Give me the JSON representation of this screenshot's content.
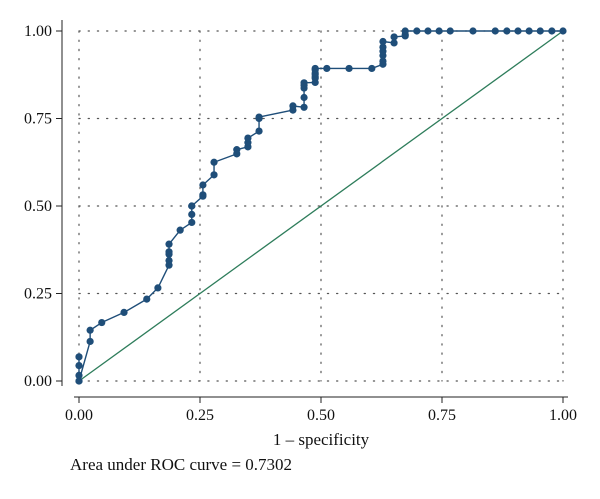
{
  "chart_data": {
    "type": "line",
    "title": "",
    "xlabel": "1 – specificity",
    "ylabel": "",
    "xlim": [
      0,
      1
    ],
    "ylim": [
      0,
      1
    ],
    "x_ticks": [
      "0.00",
      "0.25",
      "0.50",
      "0.75",
      "1.00"
    ],
    "y_ticks": [
      "0.00",
      "0.25",
      "0.50",
      "0.75",
      "1.00"
    ],
    "grid": "dotted",
    "legend": "none",
    "note": "Area under ROC curve = 0.7302",
    "colors": {
      "roc": "#1f4e79",
      "reference": "#2e7d5b",
      "grid": "#555555"
    },
    "series": [
      {
        "type": "line-markers",
        "x": [
          0.0,
          0.0,
          0.0,
          0.0,
          0.0,
          0.023,
          0.023,
          0.047,
          0.093,
          0.14,
          0.163,
          0.186,
          0.186,
          0.186,
          0.186,
          0.186,
          0.209,
          0.233,
          0.233,
          0.233,
          0.233,
          0.256,
          0.256,
          0.256,
          0.279,
          0.279,
          0.326,
          0.326,
          0.349,
          0.349,
          0.349,
          0.372,
          0.372,
          0.372,
          0.442,
          0.442,
          0.465,
          0.465,
          0.465,
          0.465,
          0.465,
          0.488,
          0.488,
          0.488,
          0.488,
          0.488,
          0.488,
          0.488,
          0.512,
          0.558,
          0.605,
          0.628,
          0.628,
          0.628,
          0.628,
          0.628,
          0.628,
          0.651,
          0.651,
          0.674,
          0.674,
          0.674,
          0.698,
          0.721,
          0.744,
          0.767,
          0.814,
          0.86,
          0.884,
          0.907,
          0.93,
          0.953,
          0.977,
          1.0
        ],
        "y": [
          0.0,
          0.016,
          0.044,
          0.069,
          0.0,
          0.113,
          0.145,
          0.167,
          0.196,
          0.234,
          0.266,
          0.331,
          0.344,
          0.362,
          0.369,
          0.391,
          0.431,
          0.453,
          0.476,
          0.5,
          0.5,
          0.528,
          0.532,
          0.56,
          0.589,
          0.625,
          0.649,
          0.661,
          0.669,
          0.681,
          0.694,
          0.714,
          0.75,
          0.754,
          0.774,
          0.786,
          0.782,
          0.81,
          0.837,
          0.845,
          0.852,
          0.853,
          0.865,
          0.869,
          0.876,
          0.88,
          0.889,
          0.893,
          0.893,
          0.893,
          0.893,
          0.905,
          0.914,
          0.93,
          0.942,
          0.954,
          0.97,
          0.966,
          0.983,
          0.986,
          0.99,
          1.0,
          1.0,
          1.0,
          1.0,
          1.0,
          1.0,
          1.0,
          1.0,
          1.0,
          1.0,
          1.0,
          1.0,
          1.0
        ]
      },
      {
        "type": "reference-line",
        "x": [
          0,
          1
        ],
        "y": [
          0,
          1
        ]
      }
    ]
  }
}
